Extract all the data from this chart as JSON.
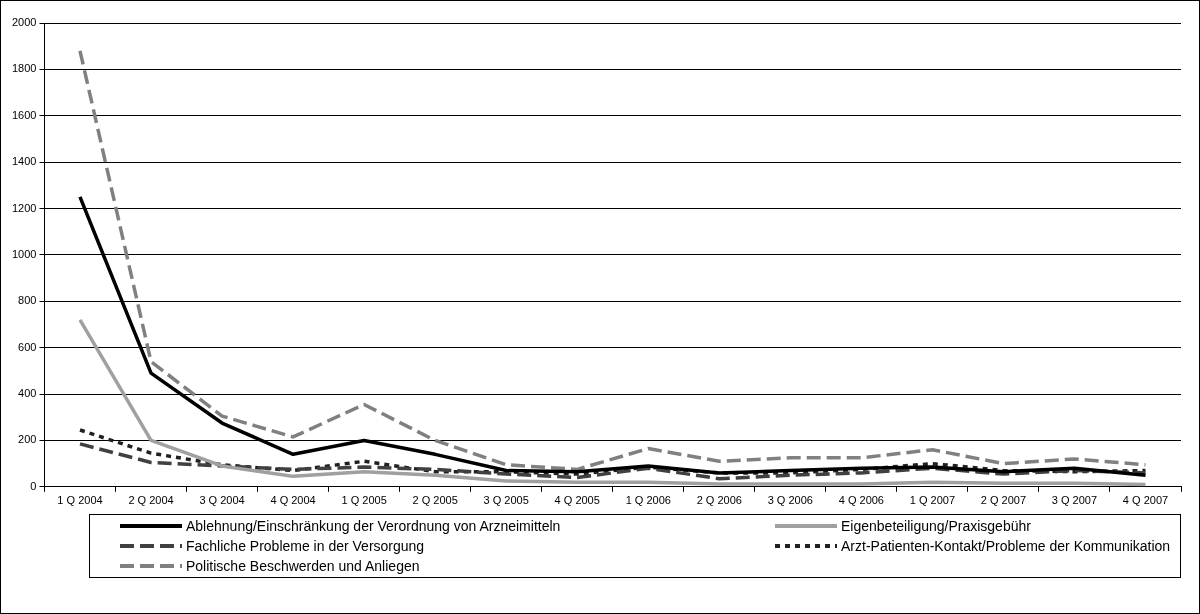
{
  "chart_data": {
    "type": "line",
    "categories": [
      "1 Q 2004",
      "2 Q 2004",
      "3 Q 2004",
      "4 Q 2004",
      "1 Q 2005",
      "2 Q 2005",
      "3 Q 2005",
      "4 Q 2005",
      "1 Q 2006",
      "2 Q 2006",
      "3 Q 2006",
      "4 Q 2006",
      "1 Q 2007",
      "2 Q 2007",
      "3 Q 2007",
      "4 Q 2007"
    ],
    "ylim": [
      0,
      2000
    ],
    "yticks": [
      0,
      200,
      400,
      600,
      800,
      1000,
      1200,
      1400,
      1600,
      1800,
      2000
    ],
    "grid": "y",
    "legend": "bottom",
    "marker": "none",
    "series": [
      {
        "name": "Ablehnung/Einschränkung der Verordnung von Arzneimitteln",
        "color": "#000000",
        "line_style": "solid",
        "values": [
          1250,
          490,
          275,
          140,
          200,
          140,
          70,
          65,
          90,
          60,
          70,
          80,
          85,
          65,
          80,
          50
        ]
      },
      {
        "name": "Eigenbeteiligung/Praxisgebühr",
        "color": "#a0a0a0",
        "line_style": "solid",
        "values": [
          720,
          200,
          90,
          45,
          65,
          50,
          25,
          20,
          20,
          12,
          12,
          12,
          20,
          15,
          15,
          10
        ]
      },
      {
        "name": "Fachliche Probleme in der Versorgung",
        "color": "#404040",
        "line_style": "dashed",
        "values": [
          185,
          105,
          90,
          75,
          85,
          75,
          55,
          40,
          80,
          35,
          50,
          60,
          80,
          55,
          70,
          60
        ]
      },
      {
        "name": "Arzt-Patienten-Kontakt/Probleme der Kommunikation",
        "color": "#202020",
        "line_style": "dotted",
        "values": [
          245,
          145,
          95,
          70,
          110,
          65,
          65,
          55,
          85,
          60,
          60,
          75,
          100,
          70,
          65,
          70
        ]
      },
      {
        "name": "Politische Beschwerden und Anliegen",
        "color": "#808080",
        "line_style": "dashed",
        "values": [
          1880,
          540,
          305,
          215,
          355,
          200,
          95,
          75,
          165,
          110,
          125,
          125,
          160,
          100,
          120,
          95
        ]
      }
    ]
  }
}
